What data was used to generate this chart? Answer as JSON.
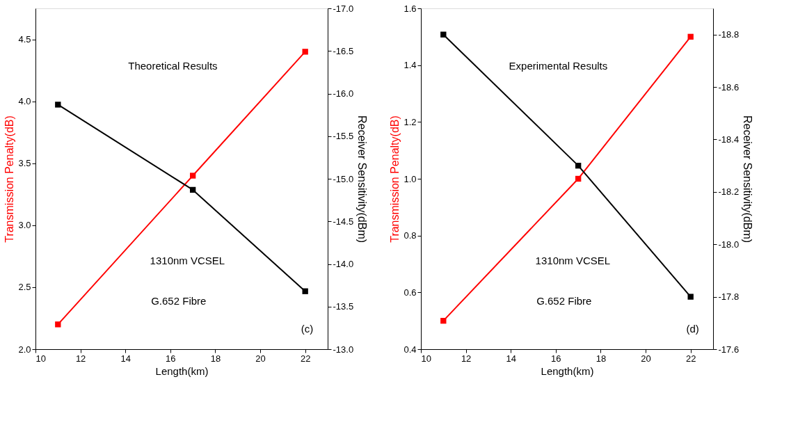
{
  "chart_data": [
    {
      "type": "line",
      "x": [
        11,
        17,
        22
      ],
      "xlabel": "Length(km)",
      "ylabel": "Transmission Penalty(dB)",
      "y2label": "Receiver Sensitivity(dBm)",
      "xlim": [
        10,
        23
      ],
      "xticks": [
        10,
        12,
        14,
        16,
        18,
        20,
        22
      ],
      "ylim": [
        2.0,
        4.75
      ],
      "yticks": [
        {
          "value": 2,
          "label": "2.0"
        },
        2.5,
        {
          "value": 3,
          "label": "3.0"
        },
        3.5,
        {
          "value": 4,
          "label": "4.0"
        },
        4.5
      ],
      "y2lim": [
        -13.0,
        -17.0
      ],
      "y2ticks": [
        {
          "value": -13,
          "label": "-13.0"
        },
        -13.5,
        {
          "value": -14,
          "label": "-14.0"
        },
        -14.5,
        {
          "value": -15,
          "label": "-15.0"
        },
        -15.5,
        {
          "value": -16,
          "label": "-16.0"
        },
        -16.5,
        {
          "value": -17,
          "label": "-17.0"
        }
      ],
      "series": [
        {
          "color": "#ff0000",
          "values": [
            2.2,
            3.4,
            4.4
          ]
        },
        {
          "color": "#000000",
          "axis": "y2",
          "values": [
            -15.87,
            -14.87,
            -13.68
          ]
        }
      ],
      "marker": "square",
      "line_style": "solid",
      "grid": false,
      "annotations": [
        "Theoretical Results",
        "1310nm VCSEL",
        "G.652 Fibre",
        "(c)"
      ]
    },
    {
      "type": "line",
      "x": [
        11,
        17,
        22
      ],
      "xlabel": "Length(km)",
      "ylabel": "Transmission Penalty(dB)",
      "y2label": "Receiver Sensitivity(dBm)",
      "xlim": [
        10,
        23
      ],
      "xticks": [
        10,
        12,
        14,
        16,
        18,
        20,
        22
      ],
      "ylim": [
        0.4,
        1.6
      ],
      "yticks": [
        0.4,
        0.6,
        0.8,
        {
          "value": 1,
          "label": "1.0"
        },
        1.2,
        1.4,
        1.6
      ],
      "y2lim": [
        -17.6,
        -18.9
      ],
      "y2ticks": [
        -17.6,
        -17.8,
        {
          "value": -18,
          "label": "-18.0"
        },
        -18.2,
        -18.4,
        -18.6,
        -18.8
      ],
      "series": [
        {
          "color": "#ff0000",
          "values": [
            0.5,
            1.0,
            1.5
          ]
        },
        {
          "color": "#000000",
          "axis": "y2",
          "values": [
            -18.8,
            -18.3,
            -17.8
          ]
        }
      ],
      "marker": "square",
      "line_style": "solid",
      "grid": false,
      "annotations": [
        "Experimental Results",
        "1310nm VCSEL",
        "G.652 Fibre",
        "(d)"
      ]
    }
  ]
}
